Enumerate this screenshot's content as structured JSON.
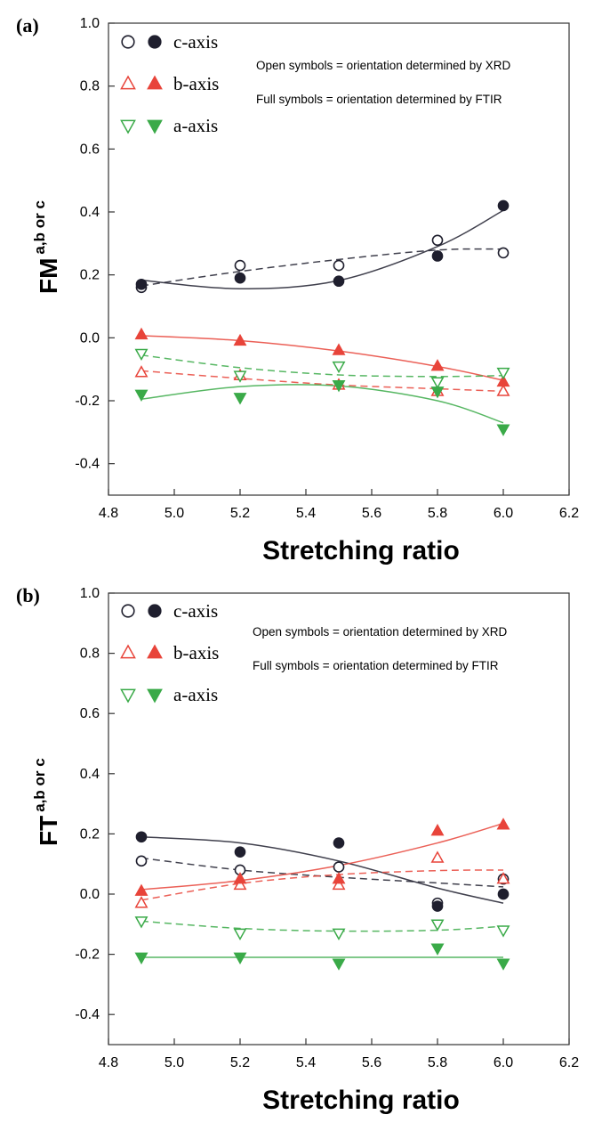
{
  "chart_data": [
    {
      "panel_label": "(a)",
      "type": "scatter",
      "xlabel": "Stretching ratio",
      "ylabel": {
        "main": "F",
        "sub": "M",
        "sup": "a,b or c"
      },
      "xlim": [
        4.8,
        6.2
      ],
      "ylim": [
        -0.5,
        1.0
      ],
      "xticks": [
        "4.8",
        "5.0",
        "5.2",
        "5.4",
        "5.6",
        "5.8",
        "6.0",
        "6.2"
      ],
      "yticks": [
        "-0.4",
        "-0.2",
        "0.0",
        "0.2",
        "0.4",
        "0.6",
        "0.8",
        "1.0"
      ],
      "legend": [
        {
          "label": "c-axis",
          "color": "#1f1f2e",
          "marker": "circle"
        },
        {
          "label": "b-axis",
          "color": "#e8443a",
          "marker": "triangle-up"
        },
        {
          "label": "a-axis",
          "color": "#3aaa48",
          "marker": "triangle-down"
        }
      ],
      "notes": [
        "Open symbols = orientation determined by XRD",
        "Full symbols = orientation determined by FTIR"
      ],
      "grid": false,
      "x": [
        4.9,
        5.2,
        5.5,
        5.8,
        6.0
      ],
      "series": [
        {
          "name": "c-axis XRD",
          "marker": "circle",
          "filled": false,
          "color": "#1f1f2e",
          "line": "dashed",
          "values": [
            0.16,
            0.23,
            0.23,
            0.31,
            0.27
          ],
          "fit": [
            0.165,
            0.211,
            0.249,
            0.279,
            0.282
          ]
        },
        {
          "name": "c-axis FTIR",
          "marker": "circle",
          "filled": true,
          "color": "#1f1f2e",
          "line": "solid",
          "values": [
            0.17,
            0.19,
            0.18,
            0.26,
            0.42
          ],
          "fit": [
            0.183,
            0.156,
            0.182,
            0.29,
            0.405
          ]
        },
        {
          "name": "b-axis XRD",
          "marker": "triangle-up",
          "filled": false,
          "color": "#e8443a",
          "line": "dashed",
          "values": [
            -0.11,
            -0.12,
            -0.15,
            -0.17,
            -0.17
          ],
          "fit": [
            -0.105,
            -0.129,
            -0.15,
            -0.162,
            -0.17
          ]
        },
        {
          "name": "b-axis FTIR",
          "marker": "triangle-up",
          "filled": true,
          "color": "#e8443a",
          "line": "solid",
          "values": [
            0.01,
            -0.01,
            -0.04,
            -0.09,
            -0.14
          ],
          "fit": [
            0.007,
            -0.009,
            -0.042,
            -0.091,
            -0.135
          ]
        },
        {
          "name": "a-axis XRD",
          "marker": "triangle-down",
          "filled": false,
          "color": "#3aaa48",
          "line": "dashed",
          "values": [
            -0.05,
            -0.12,
            -0.09,
            -0.14,
            -0.11
          ],
          "fit": [
            -0.055,
            -0.095,
            -0.118,
            -0.123,
            -0.12
          ]
        },
        {
          "name": "a-axis FTIR",
          "marker": "triangle-down",
          "filled": true,
          "color": "#3aaa48",
          "line": "solid",
          "values": [
            -0.18,
            -0.19,
            -0.15,
            -0.17,
            -0.29
          ],
          "fit": [
            -0.195,
            -0.155,
            -0.153,
            -0.2,
            -0.27
          ]
        }
      ]
    },
    {
      "panel_label": "(b)",
      "type": "scatter",
      "xlabel": "Stretching ratio",
      "ylabel": {
        "main": "F",
        "sub": "T",
        "sup": "a,b or c"
      },
      "xlim": [
        4.8,
        6.2
      ],
      "ylim": [
        -0.5,
        1.0
      ],
      "xticks": [
        "4.8",
        "5.0",
        "5.2",
        "5.4",
        "5.6",
        "5.8",
        "6.0",
        "6.2"
      ],
      "yticks": [
        "-0.4",
        "-0.2",
        "0.0",
        "0.2",
        "0.4",
        "0.6",
        "0.8",
        "1.0"
      ],
      "legend": [
        {
          "label": "c-axis",
          "color": "#1f1f2e",
          "marker": "circle"
        },
        {
          "label": "b-axis",
          "color": "#e8443a",
          "marker": "triangle-up"
        },
        {
          "label": "a-axis",
          "color": "#3aaa48",
          "marker": "triangle-down"
        }
      ],
      "notes": [
        "Open symbols = orientation determined by XRD",
        "Full symbols = orientation determined by FTIR"
      ],
      "grid": false,
      "x": [
        4.9,
        5.2,
        5.5,
        5.8,
        6.0
      ],
      "series": [
        {
          "name": "c-axis XRD",
          "marker": "circle",
          "filled": false,
          "color": "#1f1f2e",
          "line": "dashed",
          "values": [
            0.11,
            0.08,
            0.09,
            -0.03,
            0.05
          ],
          "fit": [
            0.12,
            0.08,
            0.056,
            0.037,
            0.024
          ]
        },
        {
          "name": "c-axis FTIR",
          "marker": "circle",
          "filled": true,
          "color": "#1f1f2e",
          "line": "solid",
          "values": [
            0.19,
            0.14,
            0.17,
            -0.04,
            0.0
          ],
          "fit": [
            0.19,
            0.17,
            0.11,
            0.02,
            -0.03
          ]
        },
        {
          "name": "b-axis XRD",
          "marker": "triangle-up",
          "filled": false,
          "color": "#e8443a",
          "line": "dashed",
          "values": [
            -0.03,
            0.03,
            0.03,
            0.12,
            0.05
          ],
          "fit": [
            -0.02,
            0.035,
            0.065,
            0.078,
            0.08
          ]
        },
        {
          "name": "b-axis FTIR",
          "marker": "triangle-up",
          "filled": true,
          "color": "#e8443a",
          "line": "solid",
          "values": [
            0.01,
            0.05,
            0.05,
            0.21,
            0.23
          ],
          "fit": [
            0.015,
            0.045,
            0.095,
            0.17,
            0.235
          ]
        },
        {
          "name": "a-axis XRD",
          "marker": "triangle-down",
          "filled": false,
          "color": "#3aaa48",
          "line": "dashed",
          "values": [
            -0.09,
            -0.13,
            -0.13,
            -0.1,
            -0.12
          ],
          "fit": [
            -0.09,
            -0.114,
            -0.123,
            -0.12,
            -0.107
          ]
        },
        {
          "name": "a-axis FTIR",
          "marker": "triangle-down",
          "filled": true,
          "color": "#3aaa48",
          "line": "solid",
          "values": [
            -0.21,
            -0.21,
            -0.23,
            -0.18,
            -0.23
          ],
          "fit": [
            -0.21,
            -0.21,
            -0.21,
            -0.21,
            -0.21
          ]
        }
      ]
    }
  ]
}
